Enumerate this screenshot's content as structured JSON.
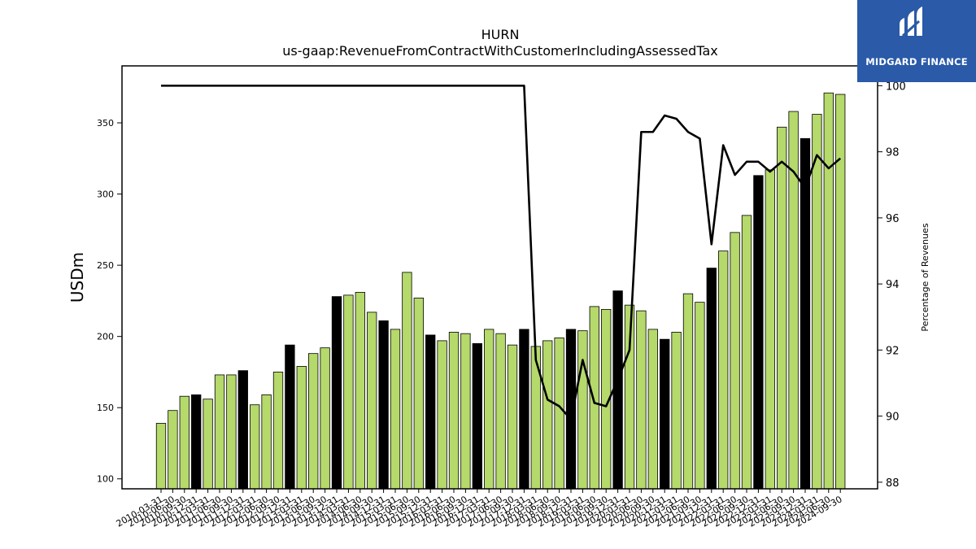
{
  "logo": {
    "text": "MIDGARD FINANCE",
    "bg_color": "#2a5aa8"
  },
  "chart_data": {
    "type": "bar",
    "title": "HURN",
    "subtitle": "us-gaap:RevenueFromContractWithCustomerIncludingAssessedTax",
    "ylabel": "USDm",
    "y2label": "Percentage of Revenues",
    "ylim": [
      93,
      390
    ],
    "y2lim": [
      87.8,
      100.6
    ],
    "yticks": [
      100,
      150,
      200,
      250,
      300,
      350
    ],
    "y2ticks": [
      88,
      90,
      92,
      94,
      96,
      98,
      100
    ],
    "bar_color": "#b5d96b",
    "highlight_color": "#000000",
    "line_color": "#000000",
    "x": [
      "2010-03-31",
      "2010-06-30",
      "2010-09-30",
      "2010-12-31",
      "2011-03-31",
      "2011-06-30",
      "2011-09-30",
      "2011-12-31",
      "2012-03-31",
      "2012-06-30",
      "2012-09-30",
      "2012-12-31",
      "2013-03-31",
      "2013-06-30",
      "2013-09-30",
      "2013-12-31",
      "2014-03-31",
      "2014-06-30",
      "2014-09-30",
      "2014-12-31",
      "2015-03-31",
      "2015-06-30",
      "2015-09-30",
      "2015-12-31",
      "2016-03-31",
      "2016-06-30",
      "2016-09-30",
      "2016-12-31",
      "2017-03-31",
      "2017-06-30",
      "2017-09-30",
      "2017-12-31",
      "2018-03-31",
      "2018-06-30",
      "2018-09-30",
      "2018-12-31",
      "2019-03-31",
      "2019-06-30",
      "2019-09-30",
      "2019-12-31",
      "2020-03-31",
      "2020-06-30",
      "2020-09-30",
      "2020-12-31",
      "2021-03-31",
      "2021-06-30",
      "2021-09-30",
      "2021-12-31",
      "2022-03-31",
      "2022-06-30",
      "2022-09-30",
      "2022-12-31",
      "2023-03-31",
      "2023-06-30",
      "2023-09-30",
      "2023-12-31",
      "2024-03-31",
      "2024-06-30",
      "2024-09-30"
    ],
    "values": [
      139,
      148,
      158,
      159,
      156,
      173,
      173,
      176,
      152,
      159,
      175,
      194,
      179,
      188,
      192,
      228,
      229,
      231,
      217,
      211,
      205,
      245,
      227,
      201,
      197,
      203,
      202,
      195,
      205,
      202,
      194,
      205,
      193,
      197,
      199,
      205,
      204,
      221,
      219,
      232,
      222,
      218,
      205,
      198,
      203,
      230,
      224,
      248,
      260,
      273,
      285,
      313,
      317,
      347,
      358,
      339,
      356,
      371,
      370
    ],
    "highlighted": [
      false,
      false,
      false,
      true,
      false,
      false,
      false,
      true,
      false,
      false,
      false,
      true,
      false,
      false,
      false,
      true,
      false,
      false,
      false,
      true,
      false,
      false,
      false,
      true,
      false,
      false,
      false,
      true,
      false,
      false,
      false,
      true,
      false,
      false,
      false,
      true,
      false,
      false,
      false,
      true,
      false,
      false,
      false,
      true,
      false,
      false,
      false,
      true,
      false,
      false,
      false,
      true,
      false,
      false,
      false,
      true,
      false,
      false,
      false
    ],
    "pct_of_revenues": [
      100,
      100,
      100,
      100,
      100,
      100,
      100,
      100,
      100,
      100,
      100,
      100,
      100,
      100,
      100,
      100,
      100,
      100,
      100,
      100,
      100,
      100,
      100,
      100,
      100,
      100,
      100,
      100,
      100,
      100,
      100,
      100,
      91.7,
      90.5,
      90.3,
      89.9,
      91.7,
      90.4,
      90.3,
      91.1,
      92,
      98.6,
      98.6,
      99.1,
      99,
      98.6,
      98.4,
      95.2,
      98.2,
      97.3,
      97.7,
      97.7,
      97.4,
      97.7,
      97.4,
      96.9,
      97.9,
      97.5,
      97.8
    ],
    "grid": false,
    "legend": "none"
  }
}
